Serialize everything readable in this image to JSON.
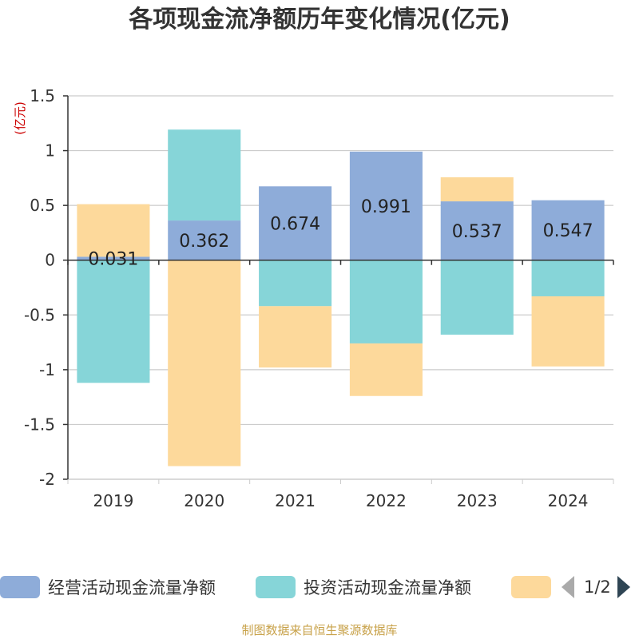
{
  "chart_data": {
    "type": "bar",
    "stacked": true,
    "title": "各项现金流净额历年变化情况(亿元)",
    "ylabel": "(亿元)",
    "ylim": [
      -2,
      1.5
    ],
    "yticks": [
      1.5,
      1,
      0.5,
      0,
      -0.5,
      -1,
      -1.5,
      -2
    ],
    "categories": [
      "2019",
      "2020",
      "2021",
      "2022",
      "2023",
      "2024"
    ],
    "series": [
      {
        "name": "经营活动现金流量净额",
        "color": "#8eacd9",
        "values": [
          0.031,
          0.362,
          0.674,
          0.991,
          0.537,
          0.547
        ],
        "labels": [
          "0.031",
          "0.362",
          "0.674",
          "0.991",
          "0.537",
          "0.547"
        ]
      },
      {
        "name": "投资活动现金流量净额",
        "color": "#86d5d8",
        "values": [
          -1.12,
          0.83,
          -0.42,
          -0.76,
          -0.68,
          -0.33
        ]
      },
      {
        "name": "",
        "color": "#fdd99b",
        "values": [
          0.48,
          -1.88,
          -0.56,
          -0.48,
          0.22,
          -0.64
        ]
      }
    ],
    "grid": true,
    "legend_position": "bottom"
  },
  "legend": {
    "pager": "1/2"
  },
  "source_note": "制图数据来自恒生聚源数据库"
}
